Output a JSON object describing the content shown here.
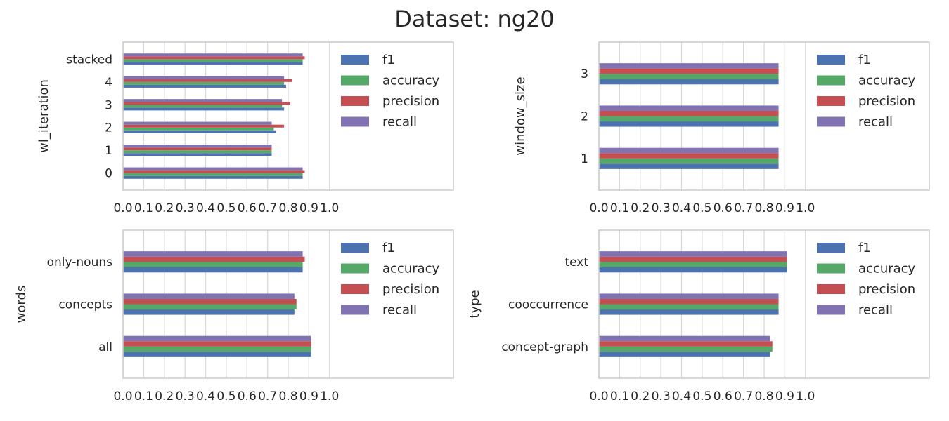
{
  "figure_title": "Dataset: ng20",
  "chart_data": [
    {
      "type": "bar",
      "orientation": "horizontal",
      "ylabel": "wl_iteration",
      "categories": [
        "0",
        "1",
        "2",
        "3",
        "4",
        "stacked"
      ],
      "xlim": [
        0,
        1.6
      ],
      "xticks": [
        "0.0",
        "0.1",
        "0.2",
        "0.3",
        "0.4",
        "0.5",
        "0.6",
        "0.7",
        "0.8",
        "0.9",
        "1.0"
      ],
      "legend": [
        "f1",
        "accuracy",
        "precision",
        "recall"
      ],
      "legend_position": "upper-right",
      "series": [
        {
          "name": "f1",
          "values": [
            0.87,
            0.72,
            0.74,
            0.78,
            0.79,
            0.87
          ]
        },
        {
          "name": "accuracy",
          "values": [
            0.87,
            0.72,
            0.73,
            0.77,
            0.78,
            0.87
          ]
        },
        {
          "name": "precision",
          "values": [
            0.88,
            0.72,
            0.78,
            0.81,
            0.82,
            0.88
          ]
        },
        {
          "name": "recall",
          "values": [
            0.87,
            0.72,
            0.72,
            0.77,
            0.78,
            0.87
          ]
        }
      ]
    },
    {
      "type": "bar",
      "orientation": "horizontal",
      "ylabel": "window_size",
      "categories": [
        "1",
        "2",
        "3"
      ],
      "xlim": [
        0,
        1.6
      ],
      "xticks": [
        "0.0",
        "0.1",
        "0.2",
        "0.3",
        "0.4",
        "0.5",
        "0.6",
        "0.7",
        "0.8",
        "0.9",
        "1.0"
      ],
      "legend": [
        "f1",
        "accuracy",
        "precision",
        "recall"
      ],
      "legend_position": "upper-right",
      "series": [
        {
          "name": "f1",
          "values": [
            0.87,
            0.87,
            0.87
          ]
        },
        {
          "name": "accuracy",
          "values": [
            0.87,
            0.87,
            0.87
          ]
        },
        {
          "name": "precision",
          "values": [
            0.87,
            0.87,
            0.87
          ]
        },
        {
          "name": "recall",
          "values": [
            0.87,
            0.87,
            0.87
          ]
        }
      ]
    },
    {
      "type": "bar",
      "orientation": "horizontal",
      "ylabel": "words",
      "categories": [
        "all",
        "concepts",
        "only-nouns"
      ],
      "xlim": [
        0,
        1.6
      ],
      "xticks": [
        "0.0",
        "0.1",
        "0.2",
        "0.3",
        "0.4",
        "0.5",
        "0.6",
        "0.7",
        "0.8",
        "0.9",
        "1.0"
      ],
      "legend": [
        "f1",
        "accuracy",
        "precision",
        "recall"
      ],
      "legend_position": "upper-right",
      "series": [
        {
          "name": "f1",
          "values": [
            0.91,
            0.83,
            0.87
          ]
        },
        {
          "name": "accuracy",
          "values": [
            0.91,
            0.84,
            0.87
          ]
        },
        {
          "name": "precision",
          "values": [
            0.91,
            0.84,
            0.88
          ]
        },
        {
          "name": "recall",
          "values": [
            0.91,
            0.83,
            0.87
          ]
        }
      ]
    },
    {
      "type": "bar",
      "orientation": "horizontal",
      "ylabel": "type",
      "categories": [
        "concept-graph",
        "cooccurrence",
        "text"
      ],
      "xlim": [
        0,
        1.6
      ],
      "xticks": [
        "0.0",
        "0.1",
        "0.2",
        "0.3",
        "0.4",
        "0.5",
        "0.6",
        "0.7",
        "0.8",
        "0.9",
        "1.0"
      ],
      "legend": [
        "f1",
        "accuracy",
        "precision",
        "recall"
      ],
      "legend_position": "upper-right",
      "series": [
        {
          "name": "f1",
          "values": [
            0.83,
            0.87,
            0.91
          ]
        },
        {
          "name": "accuracy",
          "values": [
            0.84,
            0.87,
            0.91
          ]
        },
        {
          "name": "precision",
          "values": [
            0.84,
            0.87,
            0.91
          ]
        },
        {
          "name": "recall",
          "values": [
            0.83,
            0.87,
            0.91
          ]
        }
      ]
    }
  ],
  "colors": {
    "f1": "#4c72b0",
    "accuracy": "#55a868",
    "precision": "#c44e52",
    "recall": "#8172b2",
    "grid": "#d9d9d9",
    "frame": "#cccccc",
    "text": "#262626"
  }
}
